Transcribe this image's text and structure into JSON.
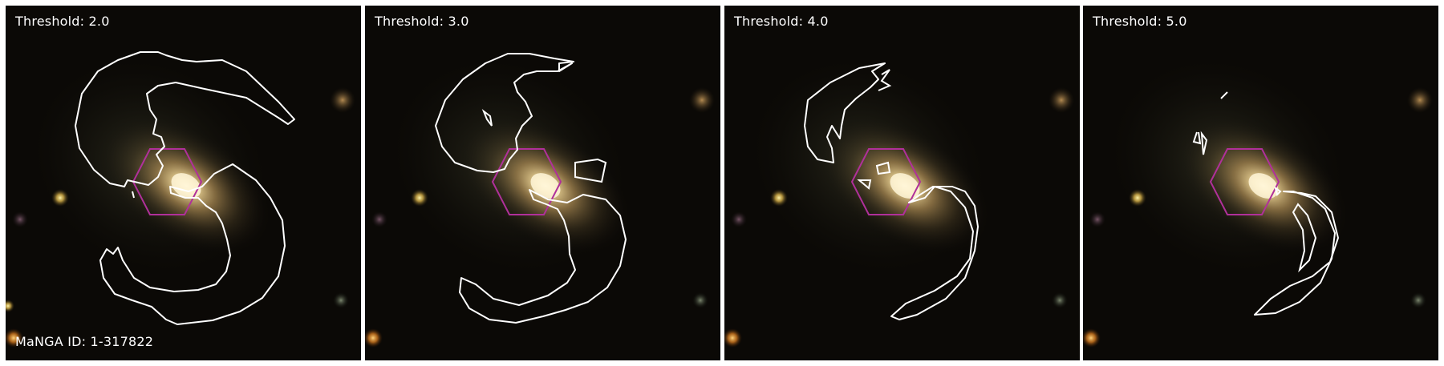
{
  "panels": [
    {
      "label": "Threshold: 2.0"
    },
    {
      "label": "Threshold: 3.0"
    },
    {
      "label": "Threshold: 4.0"
    },
    {
      "label": "Threshold: 5.0"
    }
  ],
  "manga_id_label": "MaNGA ID: 1-317822",
  "colors": {
    "contour": "#ffffff",
    "hexagon": "#b0309a",
    "background": "#0b0906",
    "galaxy_core": "#fff4cf"
  }
}
